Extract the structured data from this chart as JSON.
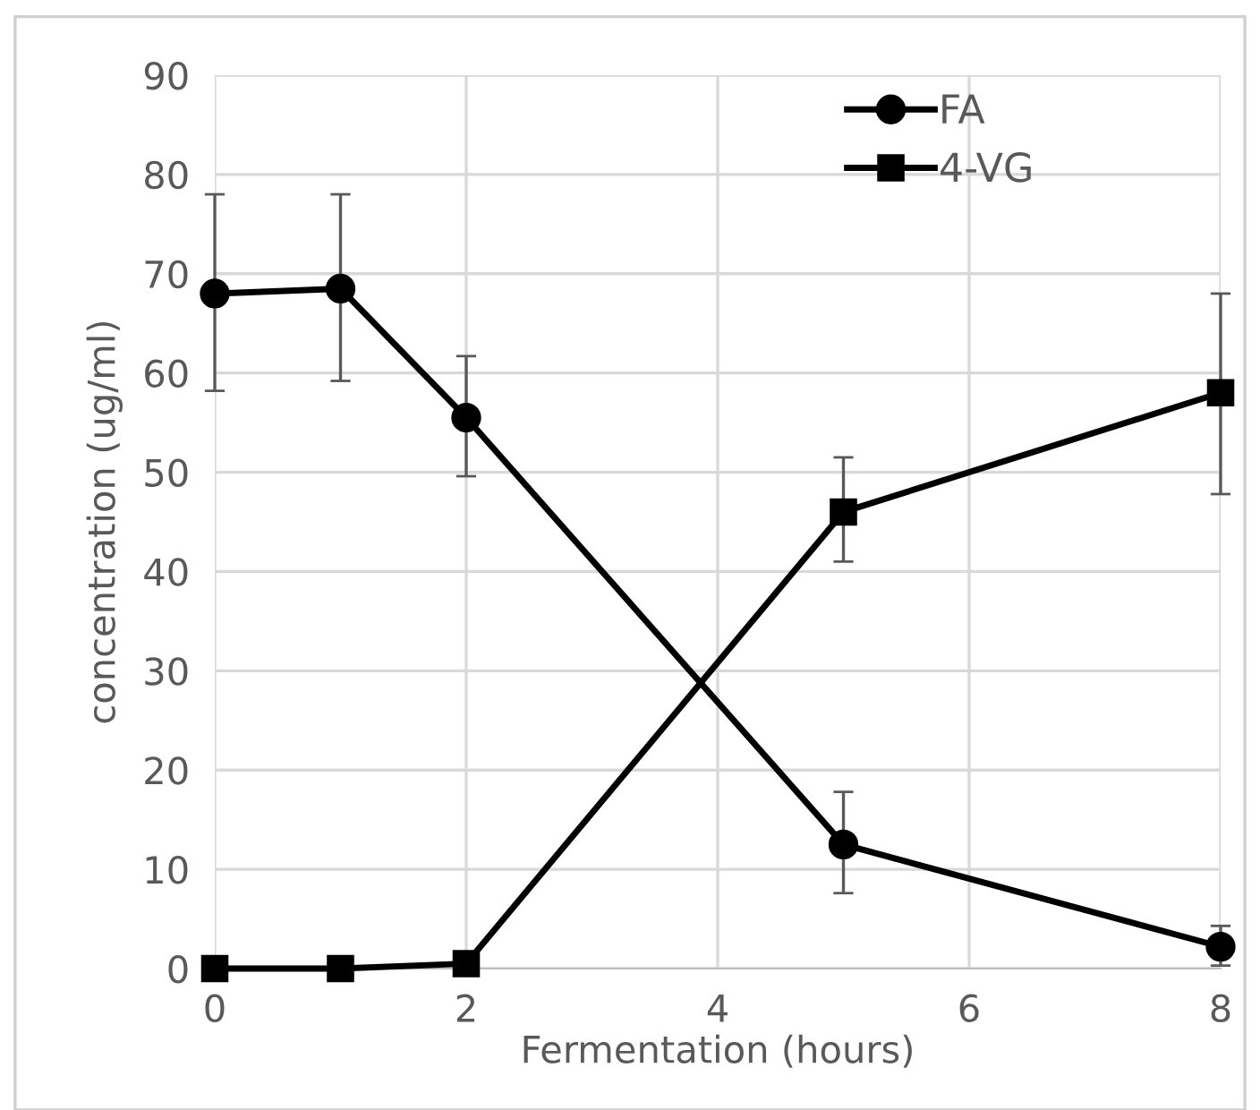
{
  "chart_data": {
    "type": "line",
    "xlabel": "Fermentation (hours)",
    "ylabel": "concentration (ug/ml)",
    "x": [
      0,
      1,
      2,
      5,
      8
    ],
    "series": [
      {
        "name": "FA",
        "color": "#000000",
        "marker": "circle",
        "values": [
          68.0,
          68.5,
          55.5,
          12.5,
          2.2
        ],
        "errors": [
          [
            58.2,
            78.0
          ],
          [
            59.2,
            78.0
          ],
          [
            49.6,
            61.7
          ],
          [
            7.6,
            17.8
          ],
          [
            0.3,
            4.3
          ]
        ]
      },
      {
        "name": "4-VG",
        "color": "#000000",
        "marker": "square",
        "values": [
          0,
          0,
          0.5,
          46.0,
          58.0
        ],
        "errors": [
          null,
          null,
          null,
          [
            41.0,
            51.5
          ],
          [
            47.8,
            68.0
          ]
        ]
      }
    ],
    "xlim": [
      0,
      8
    ],
    "xticks": [
      0,
      2,
      4,
      6,
      8
    ],
    "ylim": [
      0,
      90
    ],
    "yticks": [
      0,
      10,
      20,
      30,
      40,
      50,
      60,
      70,
      80,
      90
    ],
    "grid": true,
    "legend": "top right",
    "line_style": "solid"
  }
}
